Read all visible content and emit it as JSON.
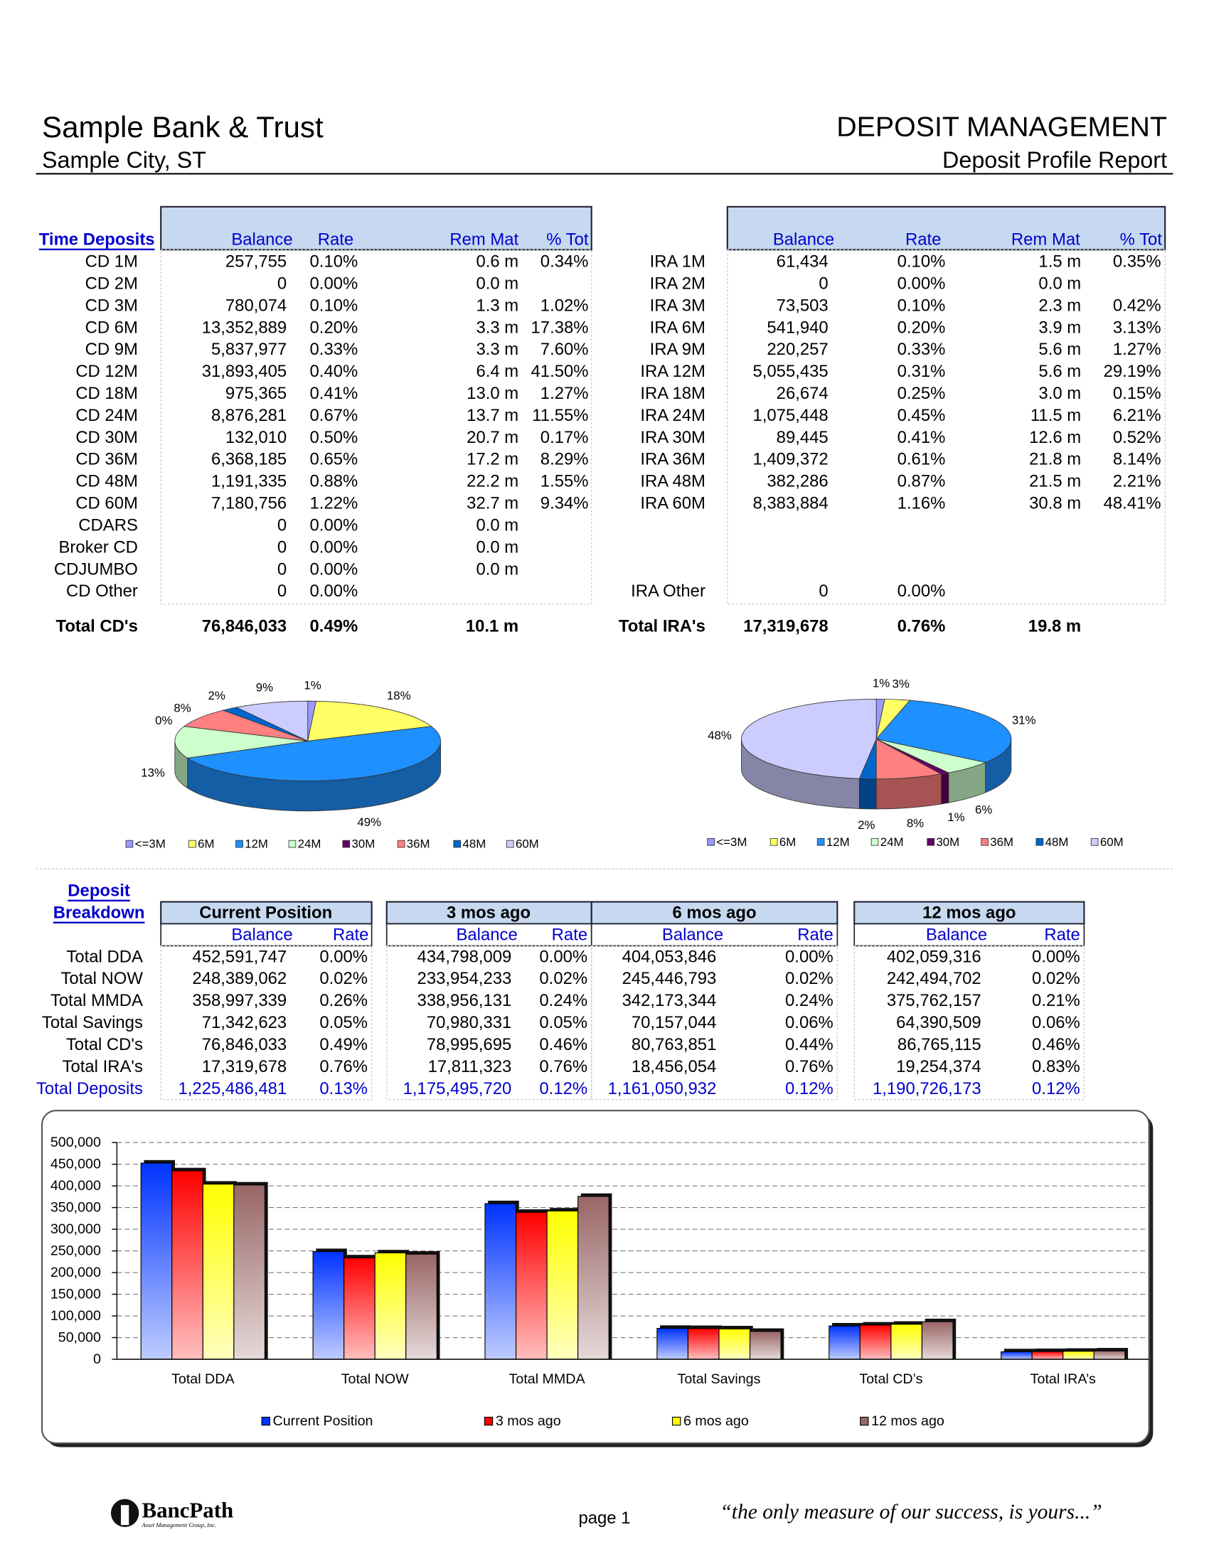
{
  "header": {
    "bank": "Sample Bank & Trust",
    "city": "Sample City, ST",
    "title": "DEPOSIT MANAGEMENT",
    "subtitle": "Deposit Profile Report"
  },
  "cd_table": {
    "section": "Time Deposits",
    "columns": [
      "Balance",
      "Rate",
      "Rem Mat",
      "% Tot"
    ],
    "rows": [
      [
        "CD 1M",
        "257,755",
        "0.10%",
        "0.6 m",
        "0.34%"
      ],
      [
        "CD 2M",
        "0",
        "0.00%",
        "0.0 m"
      ],
      [
        "CD 3M",
        "780,074",
        "0.10%",
        "1.3 m",
        "1.02%"
      ],
      [
        "CD 6M",
        "13,352,889",
        "0.20%",
        "3.3 m",
        "17.38%"
      ],
      [
        "CD 9M",
        "5,837,977",
        "0.33%",
        "3.3 m",
        "7.60%"
      ],
      [
        "CD 12M",
        "31,893,405",
        "0.40%",
        "6.4 m",
        "41.50%"
      ],
      [
        "CD 18M",
        "975,365",
        "0.41%",
        "13.0 m",
        "1.27%"
      ],
      [
        "CD 24M",
        "8,876,281",
        "0.67%",
        "13.7 m",
        "11.55%"
      ],
      [
        "CD 30M",
        "132,010",
        "0.50%",
        "20.7 m",
        "0.17%"
      ],
      [
        "CD 36M",
        "6,368,185",
        "0.65%",
        "17.2 m",
        "8.29%"
      ],
      [
        "CD 48M",
        "1,191,335",
        "0.88%",
        "22.2 m",
        "1.55%"
      ],
      [
        "CD 60M",
        "7,180,756",
        "1.22%",
        "32.7 m",
        "9.34%"
      ],
      [
        "CDARS",
        "0",
        "0.00%",
        "0.0 m"
      ],
      [
        "Broker CD",
        "0",
        "0.00%",
        "0.0 m"
      ],
      [
        "CDJUMBO",
        "0",
        "0.00%",
        "0.0 m"
      ],
      [
        "CD Other",
        "0",
        "0.00%"
      ]
    ],
    "total": [
      "Total CD's",
      "76,846,033",
      "0.49%",
      "10.1 m"
    ]
  },
  "ira_table": {
    "columns": [
      "Balance",
      "Rate",
      "Rem Mat",
      "% Tot"
    ],
    "rows": [
      [
        "IRA 1M",
        "61,434",
        "0.10%",
        "1.5 m",
        "0.35%"
      ],
      [
        "IRA 2M",
        "0",
        "0.00%",
        "0.0 m"
      ],
      [
        "IRA 3M",
        "73,503",
        "0.10%",
        "2.3 m",
        "0.42%"
      ],
      [
        "IRA 6M",
        "541,940",
        "0.20%",
        "3.9 m",
        "3.13%"
      ],
      [
        "IRA 9M",
        "220,257",
        "0.33%",
        "5.6 m",
        "1.27%"
      ],
      [
        "IRA 12M",
        "5,055,435",
        "0.31%",
        "5.6 m",
        "29.19%"
      ],
      [
        "IRA 18M",
        "26,674",
        "0.25%",
        "3.0 m",
        "0.15%"
      ],
      [
        "IRA 24M",
        "1,075,448",
        "0.45%",
        "11.5 m",
        "6.21%"
      ],
      [
        "IRA 30M",
        "89,445",
        "0.41%",
        "12.6 m",
        "0.52%"
      ],
      [
        "IRA 36M",
        "1,409,372",
        "0.61%",
        "21.8 m",
        "8.14%"
      ],
      [
        "IRA 48M",
        "382,286",
        "0.87%",
        "21.5 m",
        "2.21%"
      ],
      [
        "IRA 60M",
        "8,383,884",
        "1.16%",
        "30.8 m",
        "48.41%"
      ]
    ],
    "other": [
      "IRA Other",
      "0",
      "0.00%"
    ],
    "total": [
      "Total IRA's",
      "17,319,678",
      "0.76%",
      "19.8 m"
    ]
  },
  "chart_data": [
    {
      "type": "pie",
      "categories": [
        "<=3M",
        "6M",
        "12M",
        "24M",
        "30M",
        "36M",
        "48M",
        "60M"
      ],
      "values": [
        1,
        18,
        49,
        13,
        0,
        8,
        2,
        9
      ],
      "value_labels": [
        "1%",
        "18%",
        "49%",
        "13%",
        "0%",
        "8%",
        "2%",
        "9%"
      ],
      "colors": [
        "#9999ff",
        "#ffff66",
        "#1e90ff",
        "#ccffcc",
        "#660066",
        "#ff8080",
        "#0066cc",
        "#ccccff"
      ]
    },
    {
      "type": "pie",
      "categories": [
        "<=3M",
        "6M",
        "12M",
        "24M",
        "30M",
        "36M",
        "48M",
        "60M"
      ],
      "values": [
        1,
        3,
        31,
        6,
        1,
        8,
        2,
        48
      ],
      "value_labels": [
        "1%",
        "3%",
        "31%",
        "6%",
        "1%",
        "8%",
        "2%",
        "48%"
      ],
      "colors": [
        "#9999ff",
        "#ffff66",
        "#1e90ff",
        "#ccffcc",
        "#660066",
        "#ff8080",
        "#0066cc",
        "#ccccff"
      ]
    },
    {
      "type": "bar",
      "categories": [
        "Total DDA",
        "Total NOW",
        "Total MMDA",
        "Total Savings",
        "Total CD’s",
        "Total IRA’s"
      ],
      "series": [
        {
          "name": "Current Position",
          "color": "#0033ff",
          "values": [
            452592,
            248389,
            358997,
            71343,
            76846,
            17320
          ]
        },
        {
          "name": "3 mos ago",
          "color": "#ff0000",
          "values": [
            434798,
            233954,
            338956,
            70980,
            78996,
            17811
          ]
        },
        {
          "name": "6 mos ago",
          "color": "#ffff00",
          "values": [
            404054,
            245447,
            342173,
            70157,
            80764,
            18456
          ]
        },
        {
          "name": "12 mos ago",
          "color": "#996666",
          "values": [
            402059,
            242495,
            375762,
            64391,
            86765,
            19254
          ]
        }
      ],
      "ylim": [
        0,
        500000
      ],
      "yticks": [
        0,
        {
          "value": 50000,
          "label": "50,000"
        },
        {
          "value": 100000,
          "label": "100,000"
        },
        {
          "value": 150000,
          "label": "150,000"
        },
        {
          "value": 200000,
          "label": "200,000"
        },
        {
          "value": 250000,
          "label": "250,000"
        },
        {
          "value": 300000,
          "label": "300,000"
        },
        {
          "value": 350000,
          "label": "350,000"
        },
        {
          "value": 400000,
          "label": "400,000"
        },
        {
          "value": 450000,
          "label": "450,000"
        },
        {
          "value": 500000,
          "label": "500,000"
        }
      ],
      "grid": true,
      "legend": "bottom"
    }
  ],
  "breakdown": {
    "title_line1": "Deposit",
    "title_line2": "Breakdown",
    "periods": [
      "Current Position",
      "3 mos ago",
      "6 mos ago",
      "12 mos ago"
    ],
    "subcolumns": [
      "Balance",
      "Rate"
    ],
    "rows": [
      [
        "Total DDA",
        "452,591,747",
        "0.00%",
        "434,798,009",
        "0.00%",
        "404,053,846",
        "0.00%",
        "402,059,316",
        "0.00%"
      ],
      [
        "Total NOW",
        "248,389,062",
        "0.02%",
        "233,954,233",
        "0.02%",
        "245,446,793",
        "0.02%",
        "242,494,702",
        "0.02%"
      ],
      [
        "Total MMDA",
        "358,997,339",
        "0.26%",
        "338,956,131",
        "0.24%",
        "342,173,344",
        "0.24%",
        "375,762,157",
        "0.21%"
      ],
      [
        "Total Savings",
        "71,342,623",
        "0.05%",
        "70,980,331",
        "0.05%",
        "70,157,044",
        "0.06%",
        "64,390,509",
        "0.06%"
      ],
      [
        "Total CD's",
        "76,846,033",
        "0.49%",
        "78,995,695",
        "0.46%",
        "80,763,851",
        "0.44%",
        "86,765,115",
        "0.46%"
      ],
      [
        "Total IRA's",
        "17,319,678",
        "0.76%",
        "17,811,323",
        "0.76%",
        "18,456,054",
        "0.76%",
        "19,254,374",
        "0.83%"
      ]
    ],
    "total": [
      "Total Deposits",
      "1,225,486,481",
      "0.13%",
      "1,175,495,720",
      "0.12%",
      "1,161,050,932",
      "0.12%",
      "1,190,726,173",
      "0.12%"
    ]
  },
  "footer": {
    "logo": "BancPath",
    "logo_tagline": "Asset Management Group, Inc.",
    "page": "page 1",
    "slogan": "“the only measure of our success, is yours...”"
  }
}
